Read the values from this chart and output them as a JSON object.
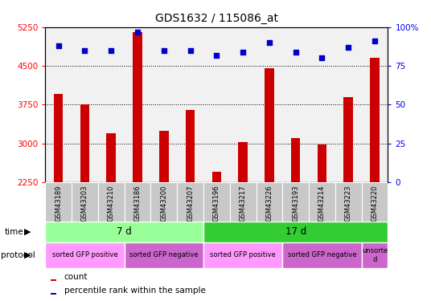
{
  "title": "GDS1632 / 115086_at",
  "samples": [
    "GSM43189",
    "GSM43203",
    "GSM43210",
    "GSM43186",
    "GSM43200",
    "GSM43207",
    "GSM43196",
    "GSM43217",
    "GSM43226",
    "GSM43193",
    "GSM43214",
    "GSM43223",
    "GSM43220"
  ],
  "counts": [
    3950,
    3750,
    3200,
    5150,
    3250,
    3650,
    2450,
    3020,
    4450,
    3100,
    2980,
    3900,
    4650
  ],
  "percentile_ranks": [
    88,
    85,
    85,
    97,
    85,
    85,
    82,
    84,
    90,
    84,
    80,
    87,
    91
  ],
  "ylim_left": [
    2250,
    5250
  ],
  "ylim_right": [
    0,
    100
  ],
  "yticks_left": [
    2250,
    3000,
    3750,
    4500,
    5250
  ],
  "yticks_right": [
    0,
    25,
    50,
    75,
    100
  ],
  "bar_color": "#cc0000",
  "dot_color": "#0000cc",
  "time_groups": [
    {
      "label": "7 d",
      "start": 0,
      "end": 6,
      "color": "#99ff99"
    },
    {
      "label": "17 d",
      "start": 6,
      "end": 13,
      "color": "#33cc33"
    }
  ],
  "protocol_groups": [
    {
      "label": "sorted GFP positive",
      "start": 0,
      "end": 3,
      "color": "#ff99ff"
    },
    {
      "label": "sorted GFP negative",
      "start": 3,
      "end": 6,
      "color": "#cc66cc"
    },
    {
      "label": "sorted GFP positive",
      "start": 6,
      "end": 9,
      "color": "#ff99ff"
    },
    {
      "label": "sorted GFP negative",
      "start": 9,
      "end": 12,
      "color": "#cc66cc"
    },
    {
      "label": "unsorte\nd",
      "start": 12,
      "end": 13,
      "color": "#cc66cc"
    }
  ],
  "legend_items": [
    {
      "label": "count",
      "color": "#cc0000"
    },
    {
      "label": "percentile rank within the sample",
      "color": "#0000cc"
    }
  ]
}
